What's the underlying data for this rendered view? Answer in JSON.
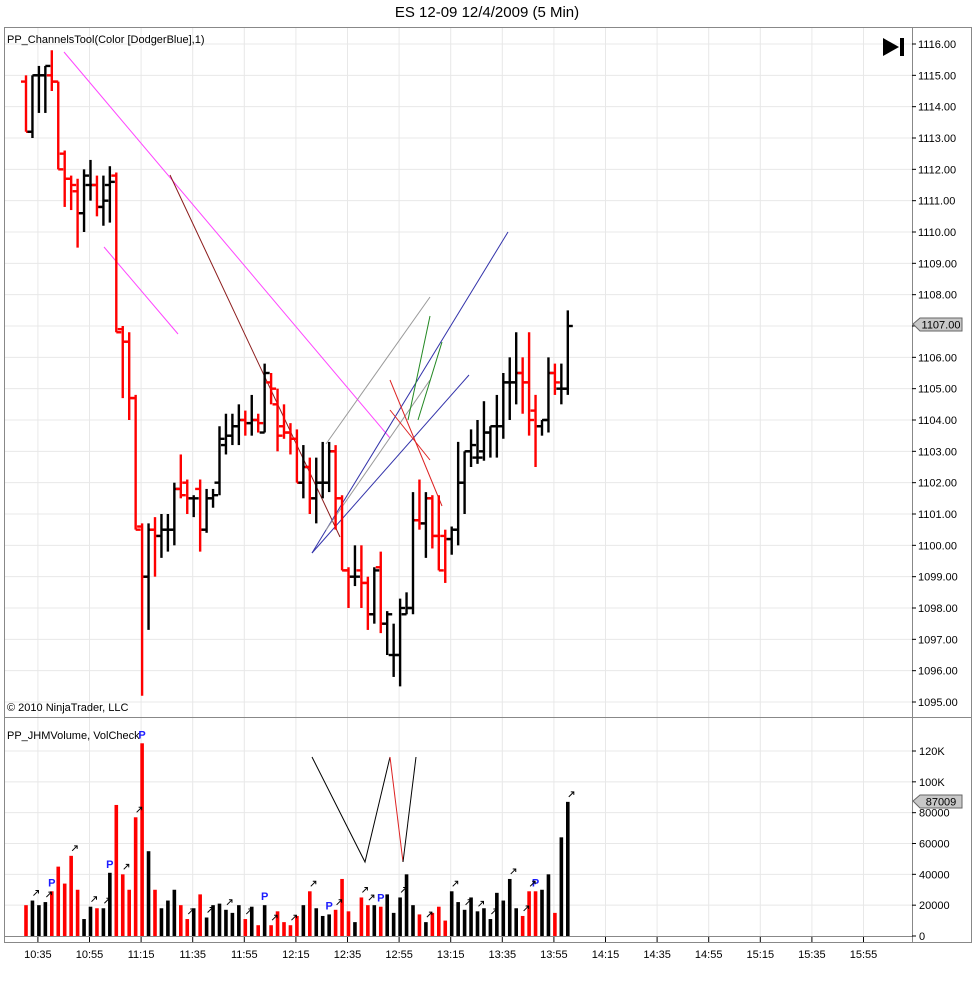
{
  "title": "ES 12-09  12/4/2009 (5 Min)",
  "price_panel": {
    "indicator_label": "PP_ChannelsTool(Color [DodgerBlue],1)",
    "copyright": "© 2010 NinjaTrader, LLC",
    "current_price_label": "1107.00",
    "play_icon": "skip-to-end-icon"
  },
  "volume_panel": {
    "indicator_label": "PP_JHMVolume, VolCheck",
    "current_volume_label": "87009",
    "marker_label": "P"
  },
  "colors": {
    "up": "#000000",
    "down": "#ff0000",
    "grid": "#e8e8e8",
    "marker": "#1c1cff"
  },
  "chart_data": {
    "type": "bar",
    "x_tick_labels": [
      "10:35",
      "10:55",
      "11:15",
      "11:35",
      "11:55",
      "12:15",
      "12:35",
      "12:55",
      "13:15",
      "13:35",
      "13:55",
      "14:15",
      "14:35",
      "14:55",
      "15:15",
      "15:35",
      "15:55"
    ],
    "price_axis": {
      "ylim": [
        1094.6,
        1116.3
      ],
      "ticks": [
        "1095.00",
        "1096.00",
        "1097.00",
        "1098.00",
        "1099.00",
        "1100.00",
        "1101.00",
        "1102.00",
        "1103.00",
        "1104.00",
        "1105.00",
        "1106.00",
        "1107.00",
        "1108.00",
        "1109.00",
        "1110.00",
        "1111.00",
        "1112.00",
        "1113.00",
        "1114.00",
        "1115.00",
        "1116.00"
      ]
    },
    "volume_axis": {
      "ylim": [
        0,
        130000
      ],
      "ticks": [
        "0",
        "20000",
        "40000",
        "60000",
        "80000",
        "100K",
        "120K"
      ]
    },
    "bars": [
      {
        "o": 1114.8,
        "h": 1115.0,
        "l": 1113.2,
        "c": 1113.2,
        "v": 20000
      },
      {
        "o": 1113.2,
        "h": 1115.0,
        "l": 1113.0,
        "c": 1115.0,
        "v": 23000
      },
      {
        "o": 1115.0,
        "h": 1115.3,
        "l": 1113.8,
        "c": 1115.0,
        "v": 20000
      },
      {
        "o": 1115.0,
        "h": 1115.3,
        "l": 1113.8,
        "c": 1115.3,
        "v": 22000
      },
      {
        "o": 1115.0,
        "h": 1115.8,
        "l": 1114.5,
        "c": 1114.8,
        "v": 29000
      },
      {
        "o": 1114.8,
        "h": 1114.8,
        "l": 1112.0,
        "c": 1112.0,
        "v": 45000
      },
      {
        "o": 1112.5,
        "h": 1112.6,
        "l": 1110.8,
        "c": 1111.7,
        "v": 34000
      },
      {
        "o": 1111.7,
        "h": 1111.8,
        "l": 1110.7,
        "c": 1111.5,
        "v": 52000
      },
      {
        "o": 1111.3,
        "h": 1111.7,
        "l": 1109.5,
        "c": 1110.6,
        "v": 30000
      },
      {
        "o": 1110.6,
        "h": 1112.0,
        "l": 1110.0,
        "c": 1111.8,
        "v": 11000
      },
      {
        "o": 1111.5,
        "h": 1112.3,
        "l": 1111.0,
        "c": 1111.5,
        "v": 19000
      },
      {
        "o": 1111.5,
        "h": 1111.8,
        "l": 1110.5,
        "c": 1110.8,
        "v": 18000
      },
      {
        "o": 1110.8,
        "h": 1111.8,
        "l": 1110.2,
        "c": 1111.0,
        "v": 18000
      },
      {
        "o": 1111.5,
        "h": 1112.1,
        "l": 1110.3,
        "c": 1111.6,
        "v": 41000
      },
      {
        "o": 1111.8,
        "h": 1111.9,
        "l": 1106.8,
        "c": 1106.8,
        "v": 85000
      },
      {
        "o": 1106.9,
        "h": 1107.0,
        "l": 1104.7,
        "c": 1106.5,
        "v": 40000
      },
      {
        "o": 1106.5,
        "h": 1106.8,
        "l": 1104.0,
        "c": 1104.7,
        "v": 30000
      },
      {
        "o": 1104.7,
        "h": 1104.8,
        "l": 1100.5,
        "c": 1100.5,
        "v": 77000
      },
      {
        "o": 1100.6,
        "h": 1100.7,
        "l": 1095.2,
        "c": 1099.0,
        "v": 125000
      },
      {
        "o": 1099.0,
        "h": 1100.7,
        "l": 1097.3,
        "c": 1100.5,
        "v": 55000
      },
      {
        "o": 1100.5,
        "h": 1100.9,
        "l": 1099.0,
        "c": 1100.3,
        "v": 30000
      },
      {
        "o": 1100.3,
        "h": 1101.0,
        "l": 1099.6,
        "c": 1100.5,
        "v": 18000
      },
      {
        "o": 1100.5,
        "h": 1101.0,
        "l": 1099.8,
        "c": 1100.5,
        "v": 23000
      },
      {
        "o": 1100.5,
        "h": 1102.0,
        "l": 1100.0,
        "c": 1101.8,
        "v": 30000
      },
      {
        "o": 1101.8,
        "h": 1102.9,
        "l": 1101.5,
        "c": 1101.6,
        "v": 20000
      },
      {
        "o": 1102.0,
        "h": 1102.1,
        "l": 1101.0,
        "c": 1101.5,
        "v": 11000
      },
      {
        "o": 1101.5,
        "h": 1101.6,
        "l": 1100.9,
        "c": 1101.5,
        "v": 18000
      },
      {
        "o": 1101.8,
        "h": 1102.1,
        "l": 1099.8,
        "c": 1100.5,
        "v": 27000
      },
      {
        "o": 1100.5,
        "h": 1101.8,
        "l": 1100.4,
        "c": 1101.5,
        "v": 12000
      },
      {
        "o": 1101.5,
        "h": 1101.8,
        "l": 1101.2,
        "c": 1101.6,
        "v": 20000
      },
      {
        "o": 1102.0,
        "h": 1103.8,
        "l": 1101.6,
        "c": 1103.4,
        "v": 21000
      },
      {
        "o": 1103.2,
        "h": 1104.2,
        "l": 1102.9,
        "c": 1103.5,
        "v": 17000
      },
      {
        "o": 1103.5,
        "h": 1104.2,
        "l": 1103.2,
        "c": 1103.8,
        "v": 15000
      },
      {
        "o": 1103.8,
        "h": 1104.5,
        "l": 1103.2,
        "c": 1104.0,
        "v": 20000
      },
      {
        "o": 1104.0,
        "h": 1104.3,
        "l": 1103.5,
        "c": 1103.9,
        "v": 11000
      },
      {
        "o": 1103.9,
        "h": 1104.8,
        "l": 1103.5,
        "c": 1104.0,
        "v": 19000
      },
      {
        "o": 1104.0,
        "h": 1104.2,
        "l": 1103.6,
        "c": 1103.9,
        "v": 7000
      },
      {
        "o": 1103.6,
        "h": 1105.8,
        "l": 1103.6,
        "c": 1105.5,
        "v": 20000
      },
      {
        "o": 1105.2,
        "h": 1105.5,
        "l": 1104.5,
        "c": 1105.0,
        "v": 7000
      },
      {
        "o": 1104.5,
        "h": 1105.0,
        "l": 1103.0,
        "c": 1103.5,
        "v": 16000
      },
      {
        "o": 1103.8,
        "h": 1104.5,
        "l": 1103.4,
        "c": 1103.6,
        "v": 9000
      },
      {
        "o": 1103.6,
        "h": 1103.9,
        "l": 1102.9,
        "c": 1103.4,
        "v": 7000
      },
      {
        "o": 1103.4,
        "h": 1103.7,
        "l": 1102.0,
        "c": 1102.0,
        "v": 13000
      },
      {
        "o": 1102.0,
        "h": 1103.2,
        "l": 1101.5,
        "c": 1102.5,
        "v": 20000
      },
      {
        "o": 1102.5,
        "h": 1102.8,
        "l": 1101.0,
        "c": 1101.5,
        "v": 29000
      },
      {
        "o": 1101.5,
        "h": 1102.8,
        "l": 1100.7,
        "c": 1102.0,
        "v": 18000
      },
      {
        "o": 1102.0,
        "h": 1103.3,
        "l": 1101.5,
        "c": 1102.0,
        "v": 13000
      },
      {
        "o": 1102.0,
        "h": 1103.3,
        "l": 1101.7,
        "c": 1103.0,
        "v": 14000
      },
      {
        "o": 1103.0,
        "h": 1103.2,
        "l": 1100.5,
        "c": 1101.5,
        "v": 17000
      },
      {
        "o": 1101.5,
        "h": 1101.6,
        "l": 1099.2,
        "c": 1099.2,
        "v": 37000
      },
      {
        "o": 1099.2,
        "h": 1099.3,
        "l": 1098.0,
        "c": 1099.0,
        "v": 16000
      },
      {
        "o": 1099.0,
        "h": 1100.0,
        "l": 1098.7,
        "c": 1099.0,
        "v": 9000
      },
      {
        "o": 1099.2,
        "h": 1100.0,
        "l": 1098.0,
        "c": 1098.8,
        "v": 25000
      },
      {
        "o": 1098.8,
        "h": 1099.0,
        "l": 1097.3,
        "c": 1097.8,
        "v": 20000
      },
      {
        "o": 1097.8,
        "h": 1099.3,
        "l": 1097.5,
        "c": 1099.2,
        "v": 20000
      },
      {
        "o": 1099.3,
        "h": 1099.8,
        "l": 1097.2,
        "c": 1097.5,
        "v": 19000
      },
      {
        "o": 1097.5,
        "h": 1097.9,
        "l": 1096.5,
        "c": 1097.8,
        "v": 27000
      },
      {
        "o": 1096.5,
        "h": 1097.5,
        "l": 1095.8,
        "c": 1096.5,
        "v": 15000
      },
      {
        "o": 1096.5,
        "h": 1098.3,
        "l": 1095.5,
        "c": 1098.0,
        "v": 25000
      },
      {
        "o": 1097.8,
        "h": 1098.5,
        "l": 1097.8,
        "c": 1098.0,
        "v": 40000
      },
      {
        "o": 1098.0,
        "h": 1101.7,
        "l": 1097.8,
        "c": 1100.8,
        "v": 20000
      },
      {
        "o": 1100.8,
        "h": 1102.1,
        "l": 1100.5,
        "c": 1100.7,
        "v": 14000
      },
      {
        "o": 1100.7,
        "h": 1101.7,
        "l": 1099.6,
        "c": 1101.5,
        "v": 9000
      },
      {
        "o": 1101.5,
        "h": 1101.6,
        "l": 1099.9,
        "c": 1100.3,
        "v": 15000
      },
      {
        "o": 1100.3,
        "h": 1101.6,
        "l": 1099.2,
        "c": 1099.2,
        "v": 19000
      },
      {
        "o": 1100.3,
        "h": 1100.5,
        "l": 1098.8,
        "c": 1100.2,
        "v": 10000
      },
      {
        "o": 1100.2,
        "h": 1100.6,
        "l": 1099.7,
        "c": 1100.5,
        "v": 29000
      },
      {
        "o": 1100.5,
        "h": 1103.3,
        "l": 1100.0,
        "c": 1102.0,
        "v": 22000
      },
      {
        "o": 1102.0,
        "h": 1103.0,
        "l": 1101.0,
        "c": 1103.0,
        "v": 17000
      },
      {
        "o": 1103.0,
        "h": 1103.7,
        "l": 1102.5,
        "c": 1103.2,
        "v": 25000
      },
      {
        "o": 1102.8,
        "h": 1104.0,
        "l": 1102.6,
        "c": 1102.8,
        "v": 16000
      },
      {
        "o": 1103.0,
        "h": 1104.6,
        "l": 1102.7,
        "c": 1103.6,
        "v": 18000
      },
      {
        "o": 1103.6,
        "h": 1103.8,
        "l": 1102.8,
        "c": 1103.8,
        "v": 11000
      },
      {
        "o": 1103.8,
        "h": 1104.8,
        "l": 1102.8,
        "c": 1103.8,
        "v": 28000
      },
      {
        "o": 1103.8,
        "h": 1105.5,
        "l": 1103.4,
        "c": 1105.2,
        "v": 23000
      },
      {
        "o": 1105.2,
        "h": 1106.0,
        "l": 1104.0,
        "c": 1105.2,
        "v": 37000
      },
      {
        "o": 1105.2,
        "h": 1106.8,
        "l": 1104.5,
        "c": 1105.5,
        "v": 18000
      },
      {
        "o": 1105.5,
        "h": 1106.0,
        "l": 1104.2,
        "c": 1105.2,
        "v": 13000
      },
      {
        "o": 1105.2,
        "h": 1106.8,
        "l": 1103.5,
        "c": 1104.0,
        "v": 29000
      },
      {
        "o": 1104.3,
        "h": 1104.8,
        "l": 1102.5,
        "c": 1103.8,
        "v": 29000
      },
      {
        "o": 1103.8,
        "h": 1104.0,
        "l": 1103.5,
        "c": 1104.0,
        "v": 30000
      },
      {
        "o": 1104.0,
        "h": 1106.0,
        "l": 1103.6,
        "c": 1105.5,
        "v": 40000
      },
      {
        "o": 1105.5,
        "h": 1105.8,
        "l": 1104.8,
        "c": 1105.2,
        "v": 15000
      },
      {
        "o": 1105.0,
        "h": 1105.8,
        "l": 1104.5,
        "c": 1105.0,
        "v": 64000
      },
      {
        "o": 1105.0,
        "h": 1107.5,
        "l": 1104.8,
        "c": 1107.0,
        "v": 87009
      }
    ],
    "p_markers": [
      4,
      13,
      18,
      37,
      47,
      55,
      79
    ],
    "arrow_markers": [
      1,
      3,
      7,
      10,
      12,
      15,
      17,
      25,
      28,
      31,
      34,
      38,
      41,
      44,
      48,
      52,
      53,
      58,
      62,
      66,
      68,
      70,
      72,
      75,
      77,
      78,
      84
    ]
  }
}
